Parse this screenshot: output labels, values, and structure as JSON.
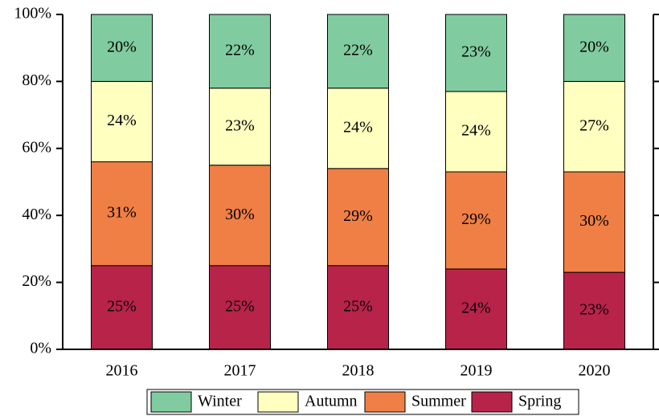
{
  "chart_data": {
    "type": "stacked_bar",
    "categories": [
      "2016",
      "2017",
      "2018",
      "2019",
      "2020"
    ],
    "series": [
      {
        "name": "Spring",
        "color": "#b8234a",
        "values": [
          25,
          25,
          25,
          24,
          23
        ],
        "value_labels": [
          "25%",
          "25%",
          "25%",
          "24%",
          "23%"
        ]
      },
      {
        "name": "Summer",
        "color": "#f07f45",
        "values": [
          31,
          30,
          29,
          29,
          30
        ],
        "value_labels": [
          "31%",
          "30%",
          "29%",
          "29%",
          "30%"
        ]
      },
      {
        "name": "Autumn",
        "color": "#ffffc0",
        "values": [
          24,
          23,
          24,
          24,
          27
        ],
        "value_labels": [
          "24%",
          "23%",
          "24%",
          "24%",
          "27%"
        ]
      },
      {
        "name": "Winter",
        "color": "#80cca0",
        "values": [
          20,
          22,
          22,
          23,
          20
        ],
        "value_labels": [
          "20%",
          "22%",
          "22%",
          "23%",
          "20%"
        ]
      }
    ],
    "ylim": [
      0,
      100
    ],
    "yticks": [
      {
        "value": 0,
        "label": "0%"
      },
      {
        "value": 20,
        "label": "20%"
      },
      {
        "value": 40,
        "label": "40%"
      },
      {
        "value": 60,
        "label": "60%"
      },
      {
        "value": 80,
        "label": "80%"
      },
      {
        "value": 100,
        "label": "100%"
      }
    ],
    "legend": "bottom"
  }
}
